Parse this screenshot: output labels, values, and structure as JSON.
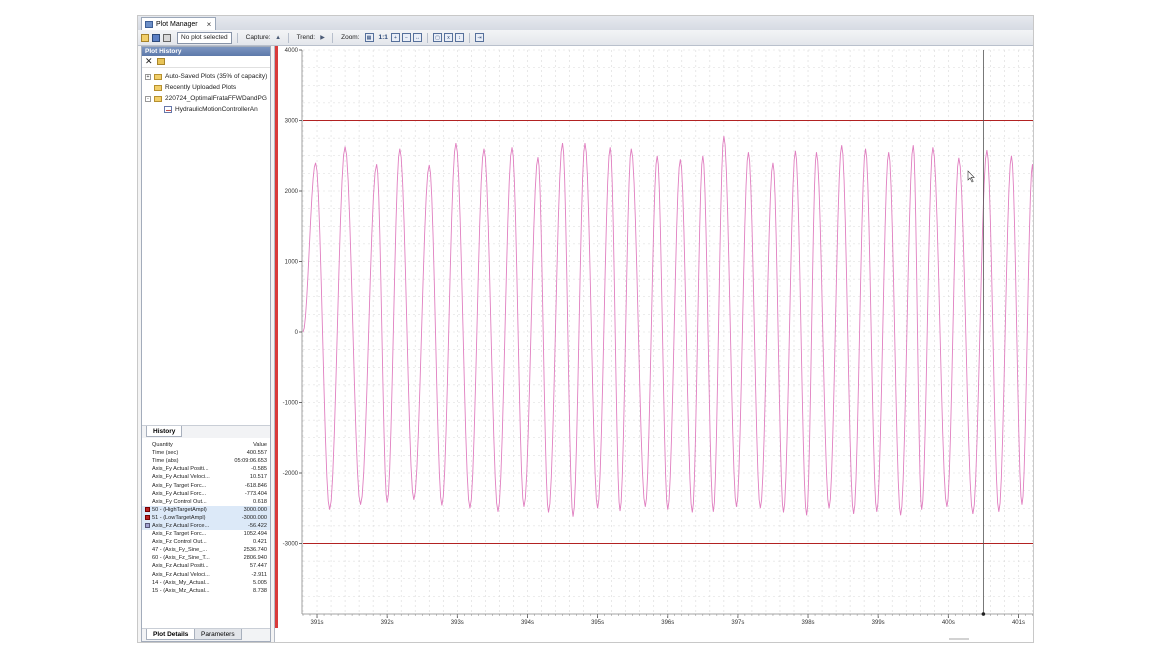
{
  "window": {
    "tab_title": "Plot Manager",
    "tab_close": "×"
  },
  "toolbar": {
    "plot_select": "No plot selected",
    "capture_label": "Capture:",
    "trend_label": "Trend:",
    "zoom_label": "Zoom:",
    "zoom_ratio": "1:1"
  },
  "history": {
    "header": "Plot History",
    "tree": [
      {
        "expander": "+",
        "icon": "folder-icon",
        "label": "Auto-Saved Plots (35% of capacity)"
      },
      {
        "expander": "",
        "icon": "folder-icon",
        "label": "Recently Uploaded Plots"
      },
      {
        "expander": "-",
        "icon": "folder-icon",
        "label": "220724_OptimalFrataFFWDandPG"
      },
      {
        "expander": "",
        "icon": "plot-icon",
        "label": "HydraulicMotionControllerAn"
      }
    ],
    "tab_label": "History"
  },
  "details": {
    "header_quantity": "Quantity",
    "header_value": "Value",
    "rows": [
      {
        "q": "Time (sec)",
        "v": "400.557",
        "swatch": "",
        "hl": false
      },
      {
        "q": "Time (abs)",
        "v": "05:09:06.653",
        "swatch": "",
        "hl": false
      },
      {
        "q": "Axis_Fy Actual Positi...",
        "v": "-0.585",
        "swatch": "",
        "hl": false
      },
      {
        "q": "Axis_Fy Actual Veloci...",
        "v": "10.517",
        "swatch": "",
        "hl": false
      },
      {
        "q": "Axis_Fy Target Forc...",
        "v": "-618.846",
        "swatch": "",
        "hl": false
      },
      {
        "q": "Axis_Fy Actual Forc...",
        "v": "-773.404",
        "swatch": "",
        "hl": false
      },
      {
        "q": "Axis_Fy Control Out...",
        "v": "0.618",
        "swatch": "",
        "hl": false
      },
      {
        "q": "50 - (HighTargetAmpl)",
        "v": "3000.000",
        "swatch": "dark",
        "hl": true
      },
      {
        "q": "51 - (LowTargetAmpl)",
        "v": "-3000.000",
        "swatch": "dark",
        "hl": true
      },
      {
        "q": "Axis_Fz Actual Force...",
        "v": "-56.422",
        "swatch": "light",
        "hl": true
      },
      {
        "q": "Axis_Fz Target Forc...",
        "v": "1052.494",
        "swatch": "",
        "hl": false
      },
      {
        "q": "Axis_Fz Control Out...",
        "v": "0.421",
        "swatch": "",
        "hl": false
      },
      {
        "q": "47 - (Axis_Fy_Sine_...",
        "v": "2536.740",
        "swatch": "",
        "hl": false
      },
      {
        "q": "60 - (Axis_Fz_Sine_T...",
        "v": "2806.940",
        "swatch": "",
        "hl": false
      },
      {
        "q": "Axis_Fz Actual Positi...",
        "v": "57.447",
        "swatch": "",
        "hl": false
      },
      {
        "q": "Axis_Fz Actual Veloci...",
        "v": "-2.911",
        "swatch": "",
        "hl": false
      },
      {
        "q": "14 - (Axis_My_Actual...",
        "v": "5.005",
        "swatch": "",
        "hl": false
      },
      {
        "q": "15 - (Axis_Mz_Actual...",
        "v": "8.738",
        "swatch": "",
        "hl": false
      }
    ],
    "tab_plot_details": "Plot Details",
    "tab_parameters": "Parameters"
  },
  "colors": {
    "signal": "#e07fc0",
    "target_lines": "#b22222",
    "left_axis_bar": "#d93b3b",
    "cursor": "#555555"
  },
  "chart_data": {
    "type": "line",
    "xlabel": "",
    "ylabel": "",
    "ylim": [
      -4000,
      4000
    ],
    "xlim": [
      390.8,
      401.25
    ],
    "y_ticks": [
      4000,
      3000,
      2000,
      1000,
      0,
      -1000,
      -2000,
      -3000
    ],
    "x_ticks": [
      "391s",
      "392s",
      "393s",
      "394s",
      "395s",
      "396s",
      "397s",
      "398s",
      "399s",
      "400s",
      "401s"
    ],
    "x_tick_values": [
      391,
      392,
      393,
      394,
      395,
      396,
      397,
      398,
      399,
      400,
      401
    ],
    "grid": true,
    "cursor_x": 400.5,
    "series": [
      {
        "name": "50 - (HighTargetAmpl)",
        "constant": 3000
      },
      {
        "name": "51 - (LowTargetAmpl)",
        "constant": -3000
      },
      {
        "name": "Axis_Fz Actual Force",
        "peaks": [
          [
            390.98,
            2400
          ],
          [
            391.4,
            2630
          ],
          [
            391.85,
            2380
          ],
          [
            392.18,
            2600
          ],
          [
            392.6,
            2370
          ],
          [
            392.98,
            2680
          ],
          [
            393.38,
            2600
          ],
          [
            393.78,
            2620
          ],
          [
            394.15,
            2480
          ],
          [
            394.5,
            2680
          ],
          [
            394.82,
            2680
          ],
          [
            395.18,
            2620
          ],
          [
            395.48,
            2600
          ],
          [
            395.85,
            2500
          ],
          [
            396.18,
            2450
          ],
          [
            396.5,
            2500
          ],
          [
            396.8,
            2780
          ],
          [
            397.15,
            2550
          ],
          [
            397.5,
            2400
          ],
          [
            397.82,
            2570
          ],
          [
            398.12,
            2550
          ],
          [
            398.48,
            2650
          ],
          [
            398.82,
            2600
          ],
          [
            399.15,
            2550
          ],
          [
            399.5,
            2650
          ],
          [
            399.78,
            2620
          ],
          [
            400.15,
            2470
          ],
          [
            400.55,
            2580
          ],
          [
            400.9,
            2500
          ],
          [
            401.2,
            2380
          ]
        ],
        "troughs": [
          [
            391.18,
            -2520
          ],
          [
            391.62,
            -2450
          ],
          [
            392.0,
            -2420
          ],
          [
            392.38,
            -2380
          ],
          [
            392.78,
            -2460
          ],
          [
            393.18,
            -2500
          ],
          [
            393.58,
            -2550
          ],
          [
            393.95,
            -2480
          ],
          [
            394.3,
            -2560
          ],
          [
            394.65,
            -2620
          ],
          [
            395.0,
            -2500
          ],
          [
            395.32,
            -2540
          ],
          [
            395.68,
            -2480
          ],
          [
            396.0,
            -2520
          ],
          [
            396.35,
            -2560
          ],
          [
            396.65,
            -2550
          ],
          [
            396.98,
            -2480
          ],
          [
            397.32,
            -2500
          ],
          [
            397.65,
            -2560
          ],
          [
            397.98,
            -2600
          ],
          [
            398.3,
            -2500
          ],
          [
            398.65,
            -2580
          ],
          [
            398.98,
            -2550
          ],
          [
            399.32,
            -2600
          ],
          [
            399.62,
            -2520
          ],
          [
            399.98,
            -2480
          ],
          [
            400.35,
            -2580
          ],
          [
            400.72,
            -2550
          ],
          [
            401.05,
            -2450
          ]
        ]
      }
    ]
  }
}
